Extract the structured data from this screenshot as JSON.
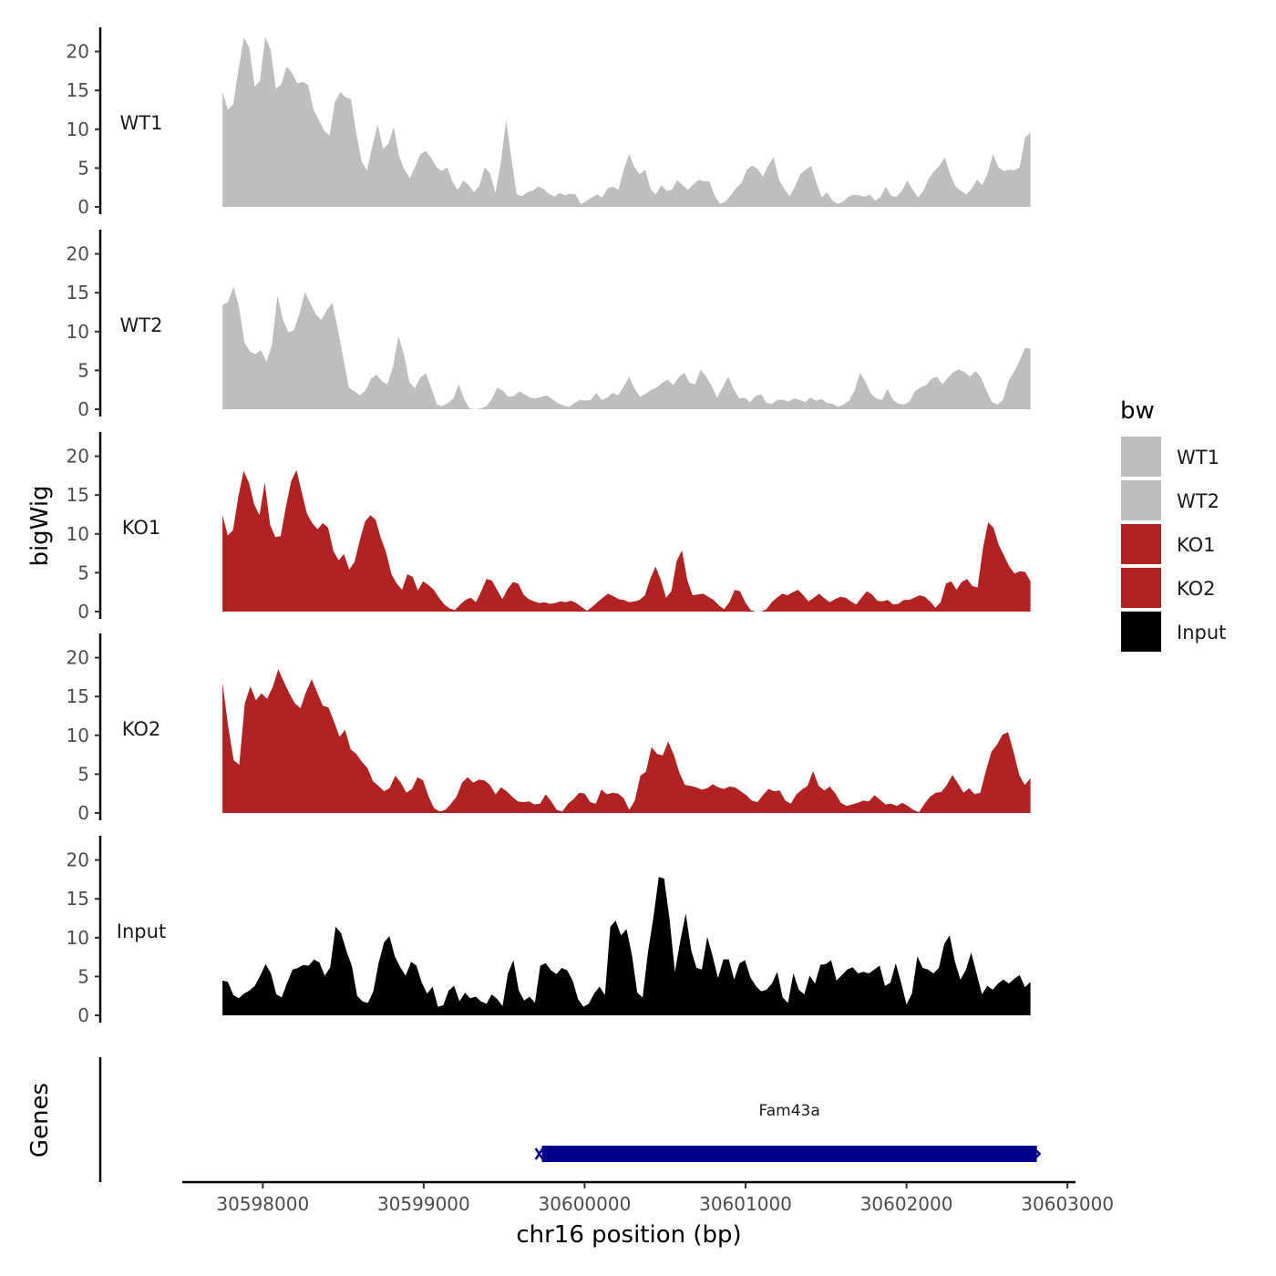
{
  "chart_data": {
    "type": "area",
    "ylabel": "bigWig",
    "xlabel": "chr16 position (bp)",
    "xlim": [
      30597500,
      30603050
    ],
    "ylim": [
      0,
      23
    ],
    "yticks": [
      0,
      5,
      10,
      15,
      20
    ],
    "xticks": [
      30598000,
      30599000,
      30600000,
      30601000,
      30602000,
      30603000
    ],
    "x_start": 30597750,
    "x_end": 30602770,
    "legend": {
      "title": "bw",
      "position": "right",
      "entries": [
        {
          "label": "WT1",
          "color": "#bebebe"
        },
        {
          "label": "WT2",
          "color": "#bebebe"
        },
        {
          "label": "KO1",
          "color": "#b22222"
        },
        {
          "label": "KO2",
          "color": "#b22222"
        },
        {
          "label": "Input",
          "color": "#000000"
        }
      ]
    },
    "series": [
      {
        "name": "WT1",
        "color": "#bebebe",
        "values": [
          14.8,
          12.5,
          13.2,
          17.8,
          21.8,
          20.5,
          15.5,
          16.2,
          21.9,
          20.2,
          15.2,
          15.8,
          18.1,
          17.2,
          15.9,
          16.1,
          15.7,
          12.5,
          11.2,
          9.8,
          9.2,
          13.5,
          14.8,
          14.1,
          13.9,
          9.5,
          5.8,
          4.7,
          7.8,
          10.6,
          7.5,
          8.1,
          10.3,
          6.5,
          4.8,
          3.7,
          5.2,
          6.8,
          7.2,
          6.3,
          5.1,
          4.6,
          5.1,
          3.2,
          2.2,
          3.4,
          2.8,
          1.9,
          2.7,
          5.1,
          4.3,
          1.8,
          5.6,
          11.2,
          6.2,
          1.6,
          1.4,
          1.9,
          2.1,
          2.6,
          2.3,
          1.7,
          1.3,
          1.8,
          1.5,
          1.7,
          1.6,
          0.3,
          0.8,
          1.2,
          1.6,
          1.2,
          2.4,
          2.6,
          2.2,
          4.8,
          6.8,
          5.1,
          4.2,
          4.8,
          2.3,
          1.6,
          2.8,
          2.1,
          2.2,
          3.4,
          2.8,
          2.2,
          2.9,
          3.5,
          3.3,
          3.3,
          1.4,
          0.4,
          0.7,
          1.5,
          2.4,
          3.1,
          4.8,
          5.3,
          4.9,
          3.9,
          5.3,
          6.4,
          3.5,
          2.3,
          1.4,
          2.6,
          4.2,
          4.8,
          5.3,
          3.1,
          1.2,
          1.9,
          0.8,
          0.4,
          0.7,
          1.3,
          1.6,
          1.5,
          1.3,
          1.6,
          0.8,
          1.3,
          2.6,
          1.4,
          1.3,
          2.1,
          3.4,
          2.2,
          1.2,
          2.1,
          3.6,
          4.6,
          5.3,
          6.4,
          4.2,
          2.6,
          2.1,
          1.6,
          2.3,
          3.5,
          2.8,
          4.3,
          6.8,
          5.1,
          4.6,
          4.8,
          4.7,
          5.1,
          8.9,
          9.6
        ]
      },
      {
        "name": "WT2",
        "color": "#bebebe",
        "values": [
          13.4,
          13.8,
          15.8,
          13.2,
          8.6,
          7.4,
          7.1,
          7.6,
          6.1,
          8.3,
          14.6,
          11.5,
          9.9,
          10.2,
          12.3,
          15.1,
          13.6,
          12.2,
          11.5,
          12.8,
          13.7,
          10.2,
          6.5,
          2.8,
          2.3,
          1.8,
          2.4,
          3.9,
          4.5,
          3.6,
          3.2,
          5.4,
          9.4,
          7.1,
          3.5,
          2.7,
          4.1,
          4.6,
          2.7,
          0.6,
          0.4,
          0.8,
          1.4,
          3.2,
          1.2,
          0.1,
          0.0,
          0.1,
          0.4,
          1.3,
          2.8,
          2.4,
          1.6,
          1.7,
          2.3,
          1.9,
          1.5,
          1.4,
          1.6,
          1.8,
          1.3,
          0.8,
          0.5,
          0.3,
          0.8,
          1.2,
          1.1,
          1.2,
          2.1,
          1.2,
          1.5,
          2.1,
          1.8,
          2.9,
          4.2,
          2.6,
          1.6,
          2.0,
          2.5,
          2.8,
          3.4,
          3.8,
          3.1,
          4.1,
          4.7,
          3.4,
          3.2,
          5.1,
          4.2,
          3.0,
          1.5,
          2.8,
          4.2,
          2.6,
          1.4,
          1.5,
          0.9,
          1.7,
          1.9,
          0.8,
          0.7,
          1.2,
          1.2,
          1.0,
          1.4,
          1.2,
          0.9,
          1.5,
          1.1,
          1.3,
          0.8,
          0.7,
          0.3,
          0.6,
          1.1,
          2.4,
          4.7,
          3.5,
          2.0,
          1.4,
          1.2,
          2.6,
          1.2,
          0.7,
          0.6,
          1.0,
          2.3,
          2.8,
          3.1,
          3.9,
          4.2,
          3.2,
          4.1,
          4.8,
          5.1,
          4.8,
          4.2,
          4.9,
          4.1,
          2.4,
          0.9,
          0.6,
          1.2,
          3.6,
          4.8,
          6.2,
          7.9,
          7.8
        ]
      },
      {
        "name": "KO1",
        "color": "#b22222",
        "values": [
          12.4,
          9.8,
          10.5,
          14.8,
          18.1,
          16.6,
          13.8,
          12.4,
          16.6,
          11.2,
          9.6,
          9.7,
          13.5,
          16.8,
          18.2,
          15.4,
          12.6,
          11.4,
          10.6,
          11.4,
          10.8,
          7.8,
          6.6,
          7.4,
          5.4,
          6.4,
          9.2,
          11.6,
          12.4,
          11.8,
          9.4,
          7.6,
          4.8,
          3.6,
          2.8,
          4.8,
          4.5,
          2.7,
          3.9,
          3.4,
          2.8,
          1.8,
          0.9,
          0.4,
          0.2,
          0.9,
          1.5,
          1.8,
          1.2,
          2.6,
          4.2,
          4.0,
          2.8,
          1.6,
          2.9,
          3.8,
          3.6,
          2.2,
          1.6,
          1.3,
          1.1,
          1.2,
          1.0,
          1.1,
          1.3,
          1.2,
          1.4,
          1.1,
          0.6,
          0.1,
          0.6,
          1.2,
          1.8,
          2.3,
          2.0,
          1.6,
          1.5,
          1.2,
          1.3,
          1.5,
          2.1,
          4.2,
          5.8,
          4.1,
          1.8,
          2.6,
          6.5,
          7.9,
          4.1,
          2.1,
          2.2,
          2.3,
          1.9,
          1.5,
          0.8,
          0.3,
          1.2,
          2.8,
          2.6,
          1.2,
          0.2,
          0.0,
          0.0,
          0.3,
          1.2,
          1.8,
          2.3,
          2.1,
          2.5,
          2.8,
          2.1,
          1.3,
          1.8,
          2.3,
          1.7,
          1.2,
          1.6,
          1.9,
          1.8,
          1.3,
          0.9,
          1.8,
          2.6,
          2.2,
          1.4,
          1.3,
          1.5,
          0.9,
          1.0,
          1.5,
          1.5,
          1.8,
          2.1,
          1.9,
          1.3,
          0.5,
          1.2,
          3.6,
          3.9,
          2.8,
          3.8,
          4.2,
          3.3,
          3.1,
          8.1,
          11.5,
          10.8,
          8.6,
          7.2,
          5.8,
          4.9,
          5.2,
          5.1,
          3.9
        ]
      },
      {
        "name": "KO2",
        "color": "#b22222",
        "values": [
          16.8,
          11.2,
          6.8,
          6.2,
          14.1,
          16.3,
          14.5,
          15.4,
          14.7,
          16.2,
          18.5,
          16.9,
          15.4,
          14.1,
          13.5,
          15.6,
          17.2,
          15.5,
          13.8,
          13.6,
          11.8,
          9.8,
          10.7,
          8.2,
          7.6,
          6.6,
          5.8,
          4.1,
          3.5,
          2.8,
          3.2,
          4.8,
          3.9,
          2.6,
          3.1,
          4.6,
          4.2,
          2.1,
          0.6,
          0.2,
          0.4,
          1.2,
          2.1,
          3.9,
          4.6,
          3.9,
          4.3,
          4.2,
          3.6,
          2.4,
          3.3,
          2.8,
          2.1,
          1.5,
          1.4,
          1.5,
          1.1,
          1.2,
          2.4,
          1.5,
          0.4,
          0.2,
          1.2,
          1.8,
          2.6,
          2.5,
          1.4,
          1.2,
          3.0,
          2.4,
          2.6,
          2.5,
          1.9,
          0.4,
          1.6,
          4.8,
          5.3,
          8.5,
          7.6,
          7.4,
          9.2,
          7.5,
          5.2,
          3.6,
          3.5,
          3.3,
          3.0,
          3.2,
          3.7,
          3.3,
          3.1,
          3.4,
          3.3,
          2.8,
          2.3,
          1.6,
          1.4,
          2.3,
          3.1,
          2.8,
          2.9,
          1.6,
          1.2,
          2.4,
          3.0,
          3.5,
          5.4,
          3.5,
          2.9,
          3.4,
          2.5,
          1.3,
          0.9,
          1.1,
          1.3,
          1.6,
          1.5,
          2.3,
          1.7,
          1.1,
          1.2,
          0.9,
          1.3,
          0.9,
          0.4,
          0.1,
          1.2,
          2.1,
          2.6,
          2.7,
          3.6,
          4.9,
          3.8,
          2.6,
          3.2,
          2.4,
          2.6,
          5.4,
          7.9,
          8.8,
          10.1,
          10.4,
          7.8,
          4.9,
          3.6,
          4.5
        ]
      },
      {
        "name": "Input",
        "color": "#000000",
        "values": [
          4.5,
          4.3,
          2.6,
          2.2,
          2.8,
          3.2,
          3.8,
          5.1,
          6.6,
          5.4,
          2.7,
          2.3,
          4.2,
          5.9,
          6.1,
          6.5,
          6.4,
          7.2,
          6.8,
          5.1,
          6.2,
          11.4,
          10.6,
          8.3,
          6.4,
          2.5,
          1.8,
          1.6,
          3.1,
          6.8,
          9.4,
          10.2,
          7.6,
          6.2,
          5.1,
          6.9,
          6.4,
          4.2,
          2.8,
          3.7,
          1.1,
          1.3,
          3.2,
          3.8,
          1.8,
          2.9,
          2.2,
          2.4,
          1.8,
          1.5,
          2.7,
          2.1,
          1.2,
          5.4,
          7.1,
          3.2,
          1.9,
          2.4,
          1.6,
          6.4,
          6.7,
          5.8,
          5.3,
          6.1,
          5.8,
          4.5,
          2.1,
          1.1,
          1.5,
          2.8,
          3.7,
          2.6,
          11.4,
          12.2,
          10.3,
          11.1,
          7.8,
          2.9,
          2.3,
          8.2,
          12.6,
          17.8,
          17.6,
          12.4,
          5.6,
          9.6,
          13.1,
          8.4,
          6.1,
          5.9,
          10.1,
          7.6,
          4.8,
          7.2,
          7.2,
          4.6,
          6.7,
          7.1,
          4.9,
          3.8,
          3.1,
          3.3,
          4.1,
          5.6,
          2.3,
          1.6,
          5.4,
          3.3,
          2.7,
          5.1,
          4.1,
          6.5,
          6.6,
          7.1,
          4.5,
          5.2,
          5.9,
          6.2,
          5.4,
          5.6,
          5.4,
          5.9,
          6.4,
          3.8,
          4.2,
          6.7,
          4.2,
          1.4,
          2.8,
          7.6,
          6.1,
          5.9,
          5.4,
          6.1,
          9.2,
          10.3,
          6.9,
          4.6,
          5.8,
          8.1,
          5.4,
          2.7,
          3.8,
          3.3,
          4.1,
          4.6,
          4.1,
          4.7,
          5.2,
          3.6,
          4.3
        ]
      }
    ],
    "genes_track": {
      "label": "Genes",
      "genes": [
        {
          "name": "Fam43a",
          "start": 30599735,
          "end": 30602810,
          "color": "#00008b"
        }
      ]
    }
  }
}
